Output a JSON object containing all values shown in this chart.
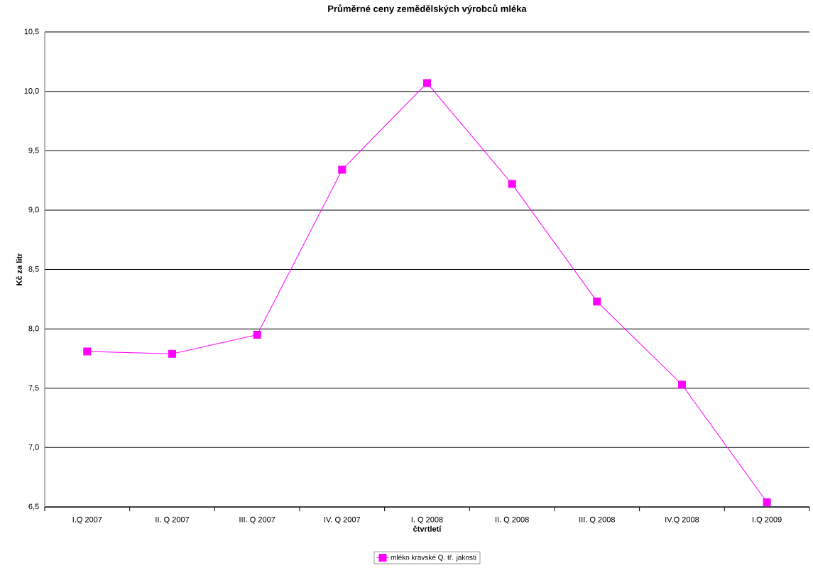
{
  "chart_data": {
    "type": "line",
    "title": "Průměrné ceny zemědělských výrobců mléka",
    "xlabel": "čtvrtletí",
    "ylabel": "Kč za litr",
    "categories": [
      "I.Q 2007",
      "II. Q 2007",
      "III. Q 2007",
      "IV. Q 2007",
      "I. Q 2008",
      "II. Q 2008",
      "III. Q 2008",
      "IV.Q 2008",
      "I.Q 2009"
    ],
    "series": [
      {
        "name": "mléko kravské Q. tř. jakosti",
        "color": "#ff00ff",
        "values": [
          7.81,
          7.79,
          7.95,
          9.34,
          10.07,
          9.22,
          8.23,
          7.53,
          6.54
        ]
      }
    ],
    "ylim": [
      6.5,
      10.5
    ],
    "yticks": [
      {
        "value": 6.5,
        "label": "6,5"
      },
      {
        "value": 7.0,
        "label": "7,0"
      },
      {
        "value": 7.5,
        "label": "7,5"
      },
      {
        "value": 8.0,
        "label": "8,0"
      },
      {
        "value": 8.5,
        "label": "8,5"
      },
      {
        "value": 9.0,
        "label": "9,0"
      },
      {
        "value": 9.5,
        "label": "9,5"
      },
      {
        "value": 10.0,
        "label": "10,0"
      },
      {
        "value": 10.5,
        "label": "10,5"
      }
    ],
    "grid": "y",
    "legend": "bottom",
    "marker": "square",
    "line_style": "solid"
  }
}
